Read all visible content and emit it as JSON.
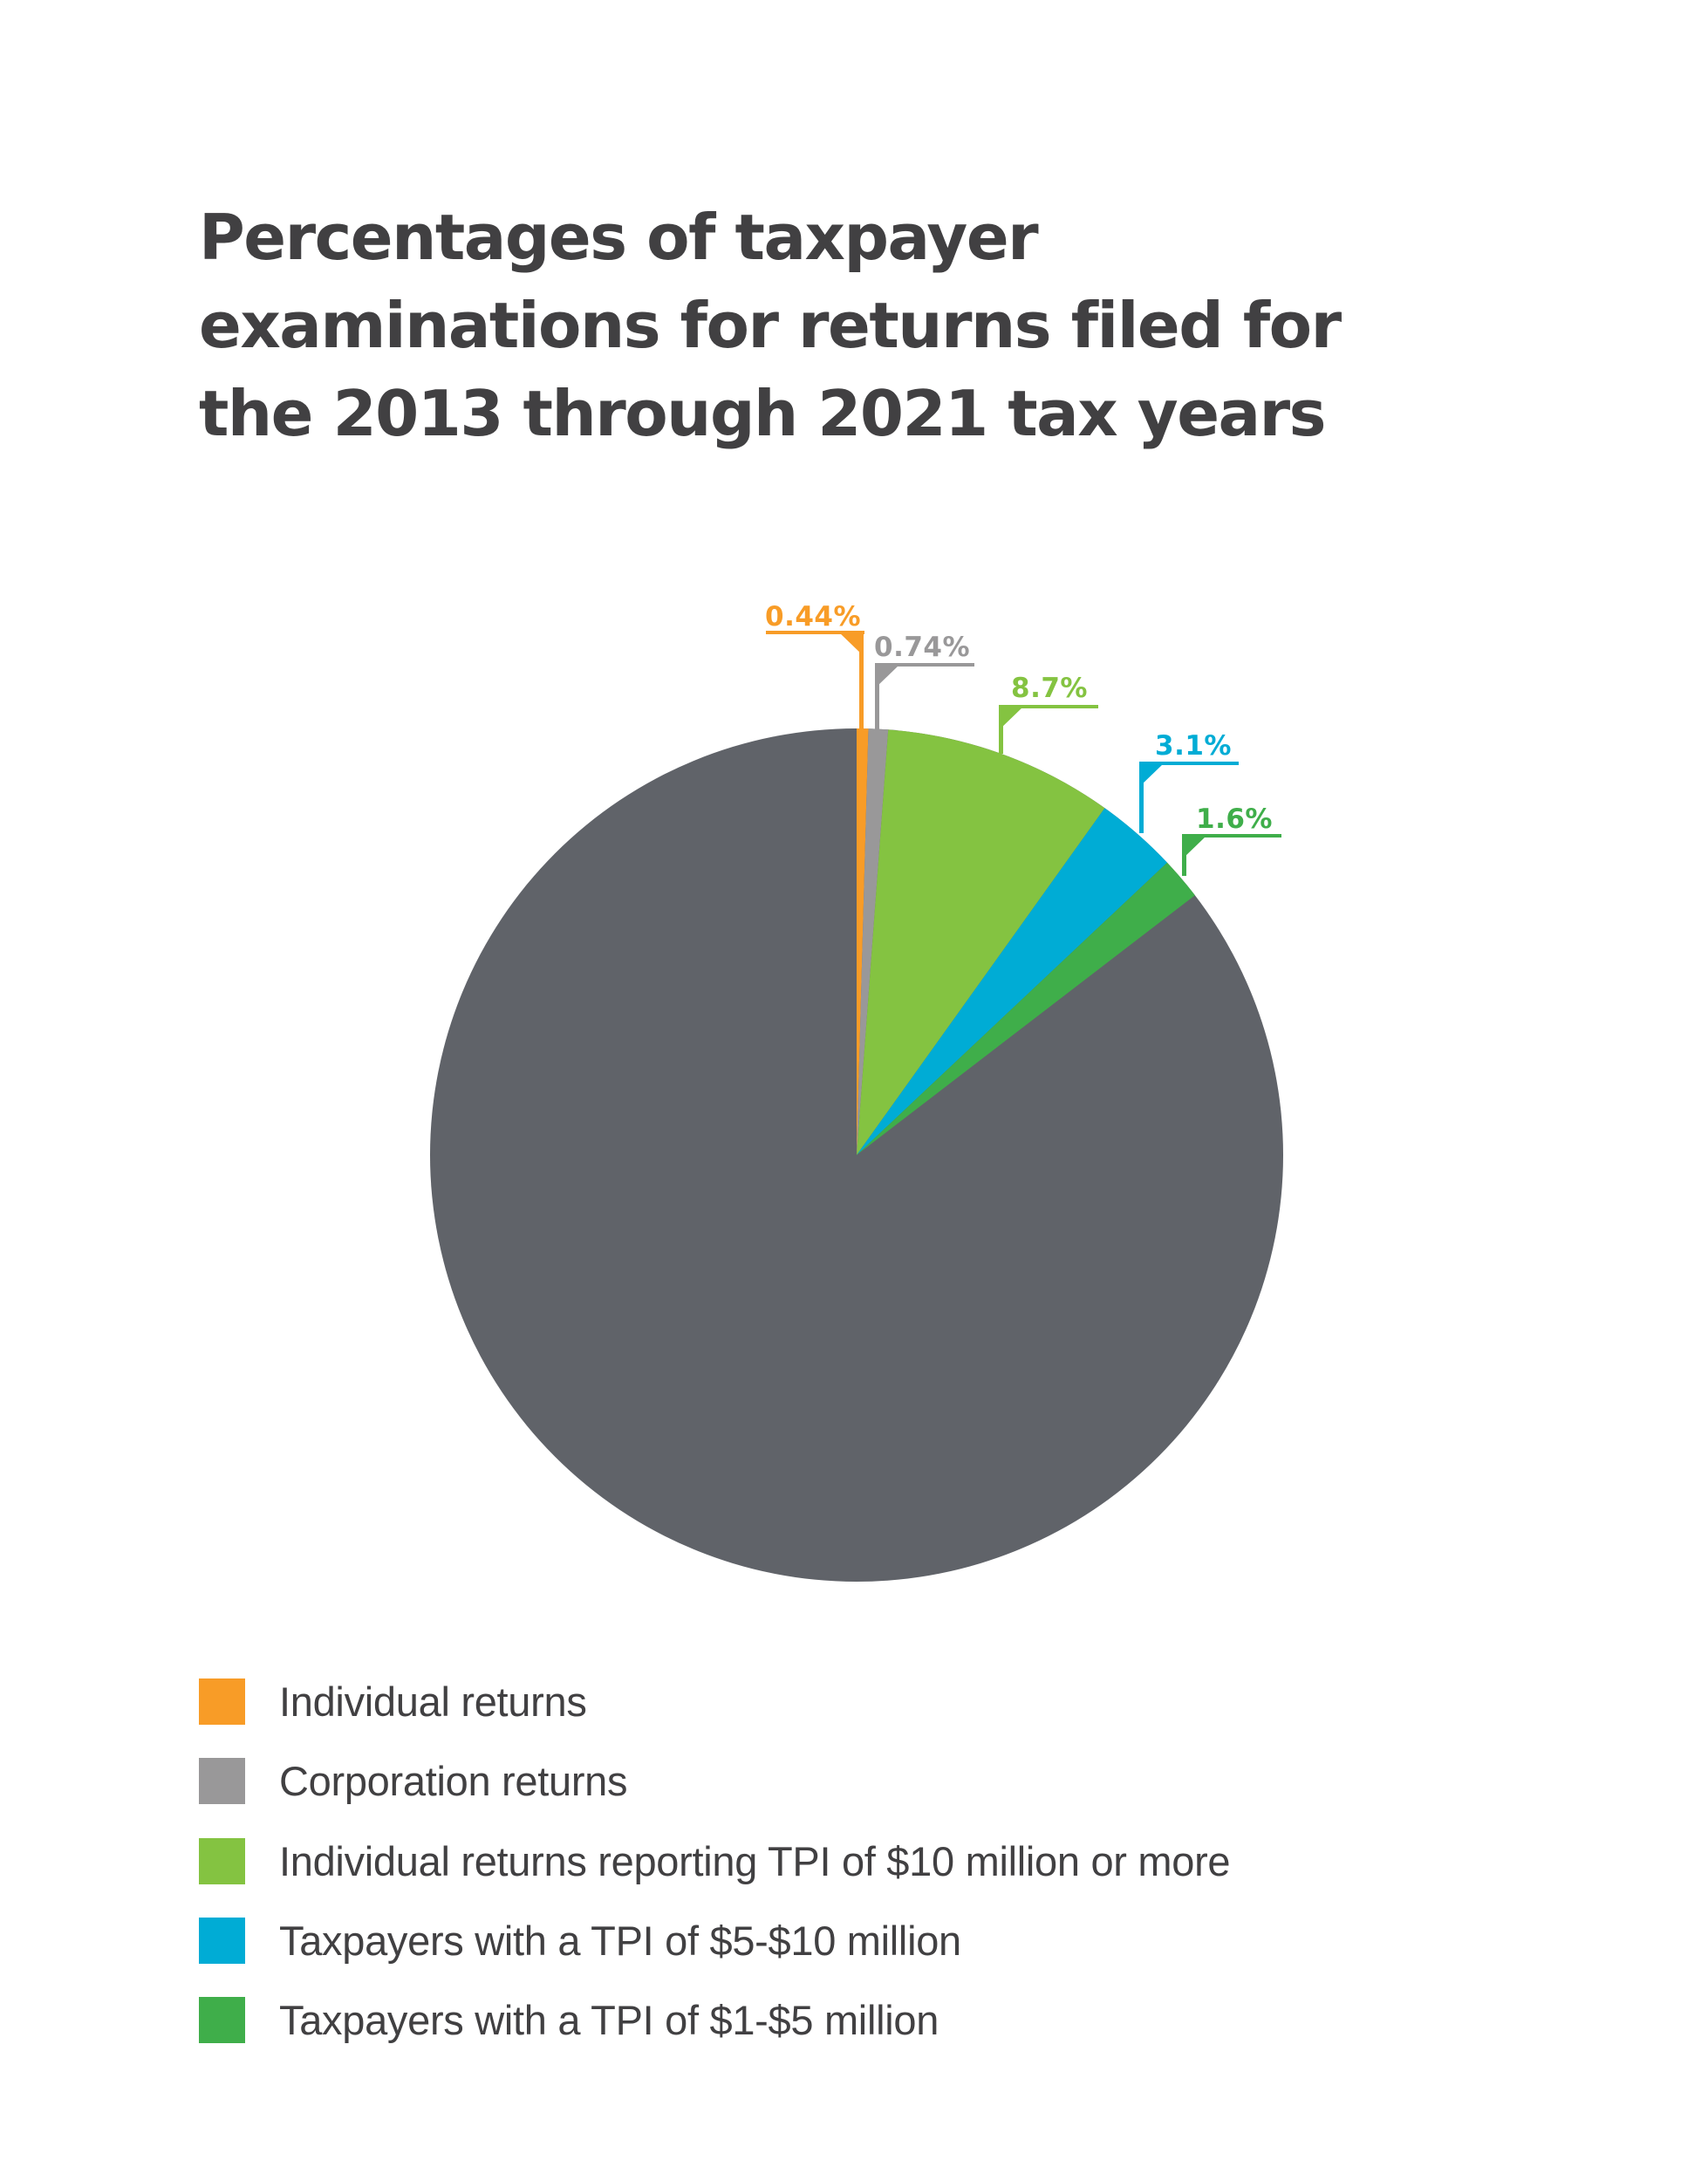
{
  "title": {
    "lines": [
      "Percentages of taxpayer",
      "examinations for returns filed for",
      "the 2013 through 2021 tax years"
    ]
  },
  "colors": {
    "text": "#414042",
    "remainder": "#606369",
    "individual_returns": "#F89C27",
    "corporation_returns": "#999899",
    "tpi_10m_plus": "#84C341",
    "tpi_5_10m": "#00ACD5",
    "tpi_1_5m": "#3FAE4A"
  },
  "chart_data": {
    "type": "pie",
    "title": "Percentages of taxpayer examinations for returns filed for the 2013 through 2021 tax years",
    "start_angle": "12 o'clock",
    "direction": "clockwise",
    "categories": [
      "Individual returns",
      "Corporation returns",
      "Individual returns reporting TPI of $10 million or more",
      "Taxpayers with a TPI of $5-$10 million",
      "Taxpayers with a TPI of $1-$5 million"
    ],
    "values": [
      0.44,
      0.74,
      8.7,
      3.1,
      1.6
    ],
    "labels": [
      "0.44%",
      "0.74%",
      "8.7%",
      "3.1%",
      "1.6%"
    ],
    "colors": [
      "#F89C27",
      "#999899",
      "#84C341",
      "#00ACD5",
      "#3FAE4A"
    ],
    "remainder_color": "#606369",
    "legend_position": "bottom-left",
    "unit": "%"
  },
  "legend": {
    "items": [
      {
        "label": "Individual returns",
        "color": "#F89C27"
      },
      {
        "label": "Corporation returns",
        "color": "#999899"
      },
      {
        "label": "Individual returns reporting TPI of $10 million or more",
        "color": "#84C341"
      },
      {
        "label": "Taxpayers with a TPI of $5-$10 million",
        "color": "#00ACD5"
      },
      {
        "label": "Taxpayers with a TPI of $1-$5 million",
        "color": "#3FAE4A"
      }
    ]
  }
}
